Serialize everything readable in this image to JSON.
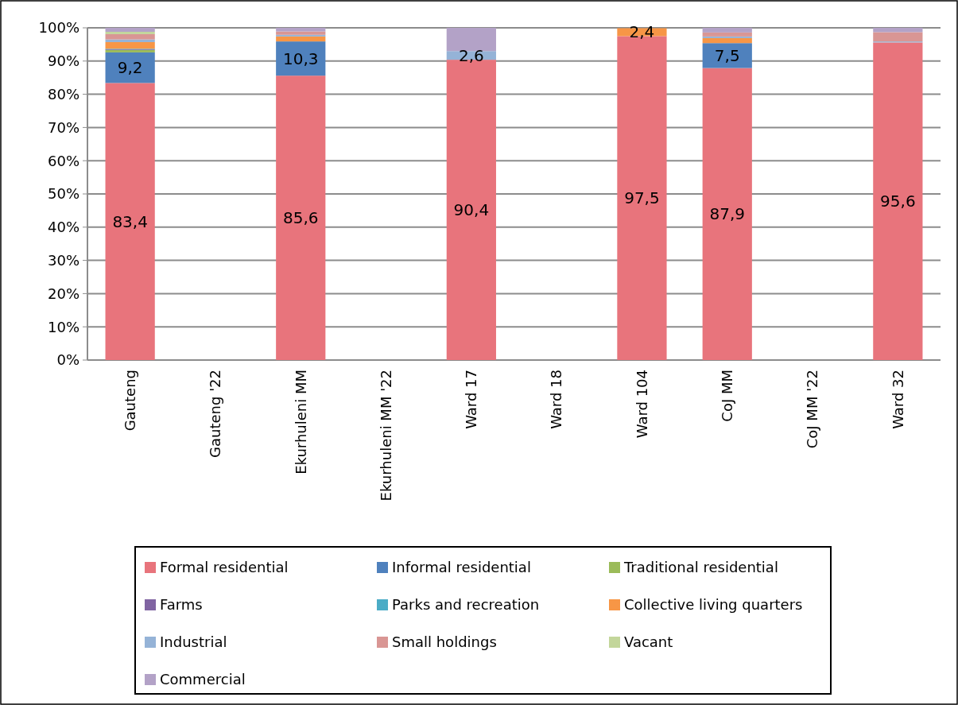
{
  "chart_data": {
    "type": "bar",
    "stacked": true,
    "categories": [
      "Gauteng",
      "Gauteng '22",
      "Ekurhuleni MM",
      "Ekurhuleni MM '22",
      "Ward 17",
      "Ward 18",
      "Ward 104",
      "CoJ MM",
      "CoJ MM '22",
      "Ward 32"
    ],
    "ylim": [
      0,
      100
    ],
    "yticks": [
      {
        "value": 0,
        "label": "0%"
      },
      {
        "value": 10,
        "label": "10%"
      },
      {
        "value": 20,
        "label": "20%"
      },
      {
        "value": 30,
        "label": "30%"
      },
      {
        "value": 40,
        "label": "40%"
      },
      {
        "value": 50,
        "label": "50%"
      },
      {
        "value": 60,
        "label": "60%"
      },
      {
        "value": 70,
        "label": "70%"
      },
      {
        "value": 80,
        "label": "80%"
      },
      {
        "value": 90,
        "label": "90%"
      },
      {
        "value": 100,
        "label": "100%"
      }
    ],
    "grid": "y",
    "legend": "bottom",
    "series": [
      {
        "name": "Formal residential",
        "color": "#e8747c",
        "values": [
          83.4,
          null,
          85.6,
          null,
          90.4,
          null,
          97.5,
          87.9,
          null,
          95.6
        ],
        "value_labels": [
          "83,4",
          null,
          "85,6",
          null,
          "90,4",
          null,
          "97,5",
          "87,9",
          null,
          "95,6"
        ]
      },
      {
        "name": "Informal residential",
        "color": "#4f81bd",
        "values": [
          9.2,
          null,
          10.3,
          null,
          0,
          null,
          0,
          7.5,
          null,
          0
        ],
        "value_labels": [
          "9,2",
          null,
          "10,3",
          null,
          null,
          null,
          null,
          "7,5",
          null,
          null
        ]
      },
      {
        "name": "Traditional residential",
        "color": "#9bbb59",
        "values": [
          0.7,
          null,
          0,
          null,
          0,
          null,
          0,
          0,
          null,
          0
        ]
      },
      {
        "name": "Farms",
        "color": "#8064a2",
        "values": [
          0.2,
          null,
          0,
          null,
          0,
          null,
          0,
          0,
          null,
          0
        ]
      },
      {
        "name": "Parks and recreation",
        "color": "#4bacc6",
        "values": [
          0.2,
          null,
          0,
          null,
          0,
          null,
          0,
          0,
          null,
          0
        ]
      },
      {
        "name": "Collective living quarters",
        "color": "#f79646",
        "values": [
          2.0,
          null,
          1.5,
          null,
          0,
          null,
          2.4,
          1.5,
          null,
          0
        ],
        "value_labels": [
          null,
          null,
          null,
          null,
          null,
          null,
          "2,4",
          null,
          null,
          null
        ]
      },
      {
        "name": "Industrial",
        "color": "#95b3d7",
        "values": [
          0.8,
          null,
          0.5,
          null,
          2.6,
          null,
          0,
          0.5,
          null,
          0.3
        ],
        "value_labels": [
          null,
          null,
          null,
          null,
          "2,6",
          null,
          null,
          null,
          null,
          null
        ]
      },
      {
        "name": "Small holdings",
        "color": "#d99694",
        "values": [
          1.6,
          null,
          1.0,
          null,
          0,
          null,
          0,
          1.2,
          null,
          2.8
        ]
      },
      {
        "name": "Vacant",
        "color": "#c3d69b",
        "values": [
          0.7,
          null,
          0,
          null,
          0,
          null,
          0,
          0,
          null,
          0
        ]
      },
      {
        "name": "Commercial",
        "color": "#b3a2c7",
        "values": [
          1.2,
          null,
          1.1,
          null,
          7.0,
          null,
          0,
          1.4,
          null,
          1.3
        ]
      }
    ]
  }
}
